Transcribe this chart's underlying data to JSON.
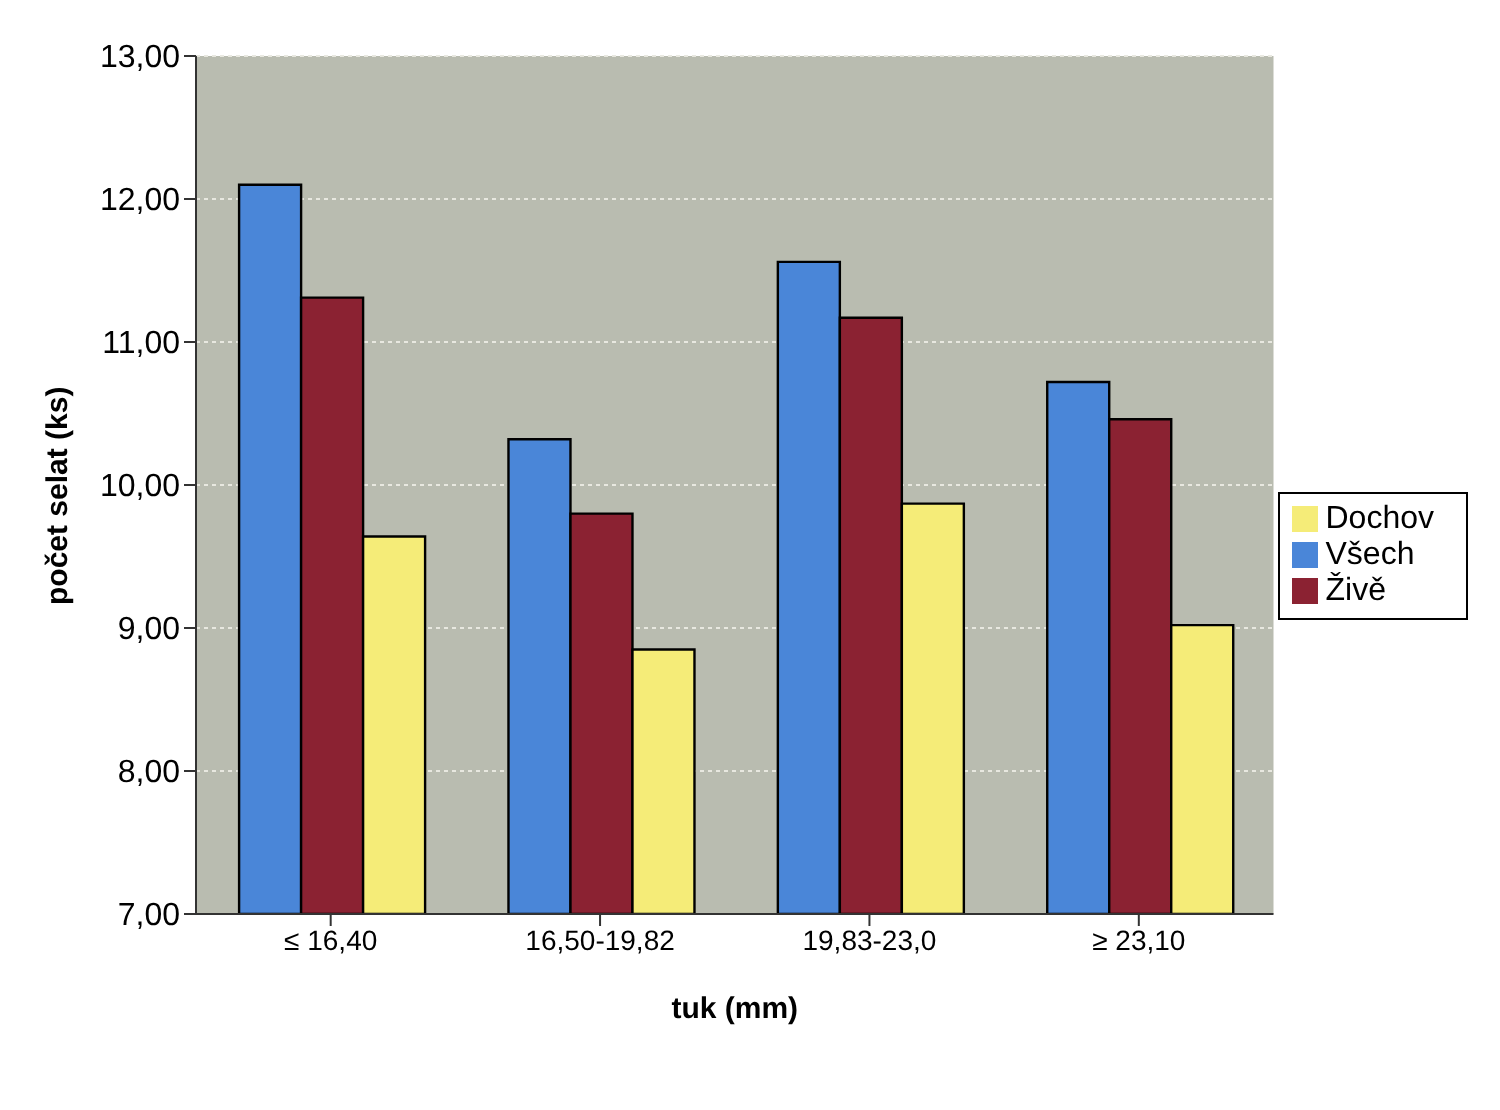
{
  "chart_data": {
    "type": "bar",
    "xlabel": "tuk (mm)",
    "ylabel": "počet selat (ks)",
    "categories": [
      "≤ 16,40",
      "16,50-19,82",
      "19,83-23,0",
      "≥ 23,10"
    ],
    "series": [
      {
        "name": "Všech",
        "color": "#4a86d8",
        "values": [
          12.1,
          10.32,
          11.56,
          10.72
        ]
      },
      {
        "name": "Živě",
        "color": "#8b2232",
        "values": [
          11.31,
          9.8,
          11.17,
          10.46
        ]
      },
      {
        "name": "Dochov",
        "color": "#f5ec78",
        "values": [
          9.64,
          8.85,
          9.87,
          9.02
        ]
      }
    ],
    "ylim": [
      7,
      13
    ],
    "yticks": [
      {
        "value": 7,
        "label": "7,00"
      },
      {
        "value": 8,
        "label": "8,00"
      },
      {
        "value": 9,
        "label": "9,00"
      },
      {
        "value": 10,
        "label": "10,00"
      },
      {
        "value": 11,
        "label": "11,00"
      },
      {
        "value": 12,
        "label": "12,00"
      },
      {
        "value": 13,
        "label": "13,00"
      }
    ],
    "grid": "y",
    "legend": "right"
  }
}
